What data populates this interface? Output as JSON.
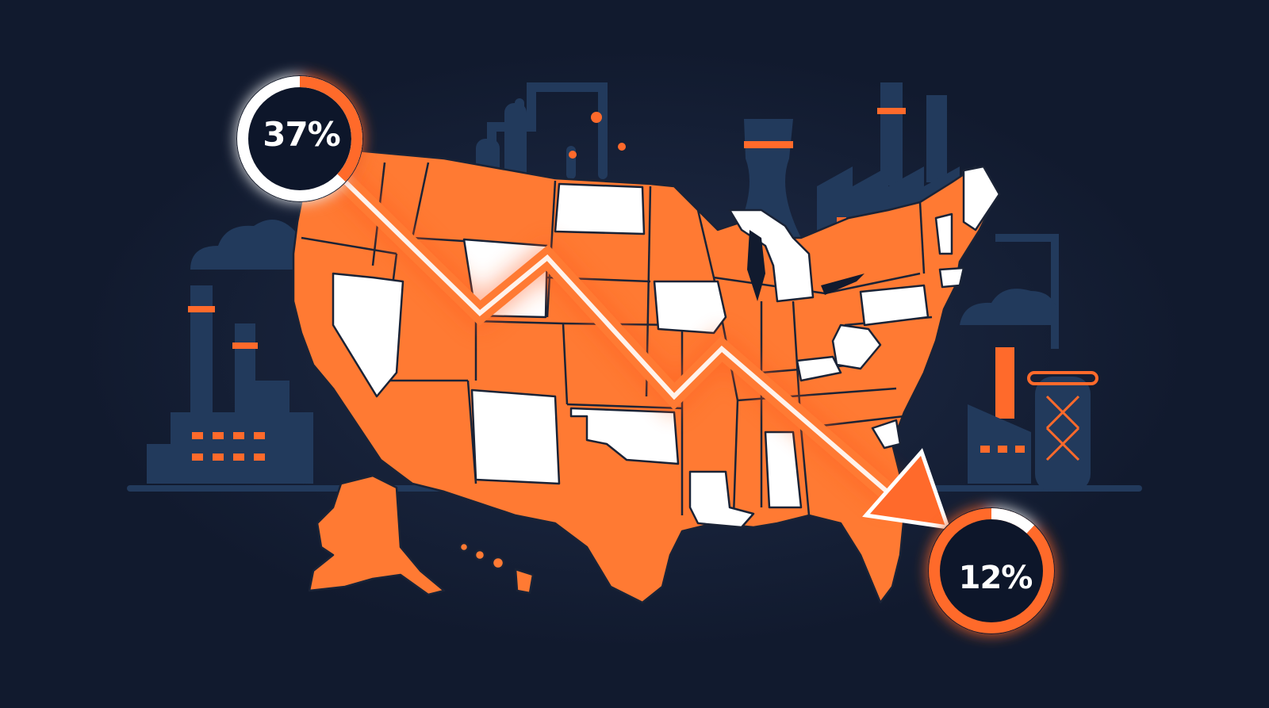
{
  "badges": {
    "start": {
      "label": "37%",
      "value": 37,
      "ring_fraction": 0.37
    },
    "end": {
      "label": "12%",
      "value": 12,
      "ring_fraction": 0.12
    }
  },
  "icons": [
    "factory-icon",
    "cooling-tower-icon",
    "smokestack-icon",
    "cloud-icon",
    "storage-tank-icon",
    "pipeline-icon",
    "downward-trend-arrow-icon"
  ],
  "colors": {
    "background": "#111a2e",
    "industry": "#223a5c",
    "accent": "#ff6a2b",
    "state_highlight": "#ff7a33",
    "state_white": "#ffffff",
    "badge_fill": "#0f1729"
  }
}
